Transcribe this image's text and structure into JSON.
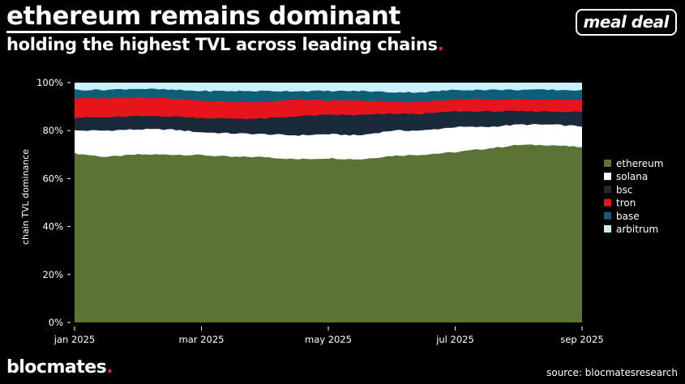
{
  "header": {
    "title": "ethereum remains dominant",
    "subtitle": "holding the highest TVL across leading chains",
    "subtitle_dot": "."
  },
  "badge": {
    "label": "meal deal"
  },
  "footer": {
    "brand": "blocmates",
    "brand_dot": ".",
    "source": "source: blocmatesresearch"
  },
  "colors": {
    "ethereum": "#5b7334",
    "solana": "#ffffff",
    "bsc": "#1a2a3a",
    "tron": "#e8141c",
    "base": "#0f5e78",
    "arbitrum": "#c9f1fb",
    "accent_dot": "#e3262f"
  },
  "chart_data": {
    "type": "area",
    "stacked": true,
    "normalized": true,
    "title": "ethereum remains dominant",
    "subtitle": "holding the highest TVL across leading chains",
    "xlabel": "",
    "ylabel": "chain TVL dominance",
    "ylim": [
      0,
      100
    ],
    "y_ticks": [
      "0%",
      "20%",
      "40%",
      "60%",
      "80%",
      "100%"
    ],
    "x_ticks": [
      "jan 2025",
      "mar 2025",
      "may 2025",
      "jul 2025",
      "sep 2025"
    ],
    "x": [
      "2025-01-01",
      "2025-01-15",
      "2025-02-01",
      "2025-02-15",
      "2025-03-01",
      "2025-03-15",
      "2025-04-01",
      "2025-04-15",
      "2025-05-01",
      "2025-05-15",
      "2025-06-01",
      "2025-06-15",
      "2025-07-01",
      "2025-07-15",
      "2025-08-01",
      "2025-08-15",
      "2025-09-01"
    ],
    "legend_position": "right",
    "series": [
      {
        "name": "ethereum",
        "values": [
          70.5,
          69.0,
          70.0,
          70.0,
          69.8,
          69.0,
          69.0,
          68.0,
          68.5,
          68.0,
          69.5,
          70.0,
          71.0,
          72.5,
          74.0,
          74.0,
          73.0
        ]
      },
      {
        "name": "solana",
        "values": [
          9.5,
          11.0,
          10.5,
          10.5,
          9.5,
          9.8,
          9.5,
          10.0,
          10.0,
          10.0,
          10.5,
          10.0,
          10.5,
          9.0,
          8.5,
          8.5,
          8.8
        ]
      },
      {
        "name": "bsc",
        "values": [
          5.5,
          5.5,
          5.5,
          5.5,
          6.0,
          6.2,
          6.5,
          8.0,
          8.0,
          8.5,
          7.0,
          7.0,
          6.5,
          6.5,
          5.5,
          5.5,
          6.0
        ]
      },
      {
        "name": "tron",
        "values": [
          8.0,
          8.0,
          8.0,
          7.5,
          7.0,
          7.0,
          7.0,
          7.0,
          6.0,
          6.0,
          5.0,
          5.0,
          5.0,
          5.0,
          5.0,
          5.0,
          5.0
        ]
      },
      {
        "name": "base",
        "values": [
          3.5,
          3.5,
          3.5,
          3.5,
          4.2,
          4.5,
          4.5,
          3.5,
          4.0,
          4.0,
          4.0,
          4.0,
          4.0,
          4.0,
          4.0,
          4.0,
          4.0
        ]
      },
      {
        "name": "arbitrum",
        "values": [
          3.0,
          3.0,
          2.5,
          3.0,
          3.5,
          3.5,
          3.5,
          3.5,
          3.5,
          3.5,
          4.0,
          4.0,
          3.0,
          3.0,
          3.0,
          3.0,
          3.2
        ]
      }
    ]
  }
}
